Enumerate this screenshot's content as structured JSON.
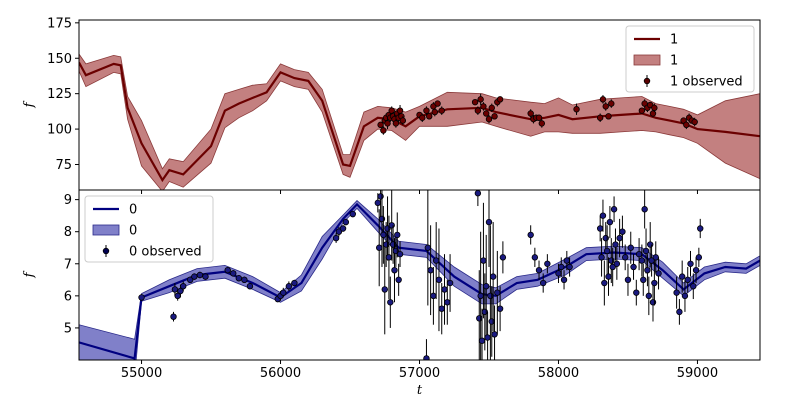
{
  "chart_data": [
    {
      "type": "line",
      "panel": "top",
      "ylabel": "f",
      "xlim": [
        54550,
        59450
      ],
      "ylim": [
        57,
        177
      ],
      "yticks": [
        75,
        100,
        125,
        150,
        175
      ],
      "legend": {
        "placement": "top-right",
        "entries": [
          "1",
          "1",
          "1 observed"
        ]
      },
      "colors": {
        "line": "#6b0000",
        "band": "#b86a6a",
        "band_edge": "#8b3a3a",
        "points": "#6b0000",
        "marker": "#5a0000"
      },
      "series": [
        {
          "name": "1",
          "x": [
            54550,
            54600,
            54800,
            54850,
            54900,
            55000,
            55150,
            55200,
            55300,
            55500,
            55600,
            55700,
            55800,
            55900,
            56000,
            56100,
            56200,
            56300,
            56450,
            56500,
            56600,
            56700,
            56800,
            56900,
            57000,
            57200,
            57450,
            57550,
            57800,
            57900,
            58000,
            58100,
            58300,
            58450,
            58600,
            58700,
            58800,
            58900,
            59000,
            59200,
            59450
          ],
          "y": [
            147,
            138,
            146,
            145,
            115,
            90,
            64,
            71,
            68,
            88,
            113,
            118,
            122,
            126,
            140,
            136,
            134,
            120,
            75,
            74,
            102,
            108,
            107,
            102,
            109,
            114,
            115,
            112,
            107,
            108,
            110,
            107,
            109,
            110,
            111,
            108,
            106,
            104,
            100,
            98,
            95
          ],
          "band_halfwidth": [
            6,
            8,
            6,
            6,
            8,
            16,
            8,
            8,
            9,
            12,
            12,
            10,
            9,
            6,
            6,
            6,
            6,
            8,
            7,
            8,
            10,
            8,
            8,
            10,
            7,
            12,
            10,
            10,
            12,
            10,
            12,
            10,
            12,
            12,
            12,
            10,
            10,
            10,
            10,
            22,
            30
          ]
        },
        {
          "name": "1 observed",
          "x": [
            56720,
            56740,
            56750,
            56760,
            56770,
            56780,
            56790,
            56800,
            56810,
            56820,
            56830,
            56840,
            56850,
            56860,
            56870,
            56880,
            57000,
            57020,
            57050,
            57070,
            57100,
            57110,
            57130,
            57160,
            57400,
            57420,
            57440,
            57460,
            57480,
            57500,
            57520,
            57540,
            57560,
            57580,
            57800,
            57820,
            57840,
            57860,
            57880,
            58130,
            58300,
            58320,
            58340,
            58360,
            58380,
            58600,
            58620,
            58640,
            58660,
            58680,
            58690,
            58900,
            58920,
            58940,
            58960,
            58980
          ],
          "y": [
            103,
            99,
            106,
            108,
            104,
            110,
            108,
            113,
            109,
            107,
            104,
            111,
            108,
            113,
            109,
            106,
            110,
            108,
            113,
            109,
            116,
            112,
            118,
            113,
            119,
            113,
            121,
            116,
            111,
            107,
            115,
            109,
            119,
            121,
            111,
            107,
            108,
            108,
            104,
            114,
            108,
            121,
            116,
            109,
            118,
            113,
            118,
            115,
            117,
            111,
            115,
            106,
            103,
            108,
            106,
            105
          ],
          "yerr": [
            2,
            3,
            2,
            3,
            4,
            2,
            3,
            3,
            3,
            4,
            3,
            2,
            3,
            4,
            2,
            3,
            2,
            3,
            3,
            2,
            3,
            3,
            2,
            3,
            2,
            3,
            4,
            3,
            2,
            3,
            3,
            2,
            3,
            2,
            3,
            3,
            2,
            2,
            3,
            4,
            3,
            3,
            3,
            2,
            3,
            2,
            3,
            3,
            2,
            2,
            3,
            2,
            3,
            3,
            2,
            3
          ]
        }
      ]
    },
    {
      "type": "line",
      "panel": "bottom",
      "ylabel": "f",
      "xlabel": "t",
      "xlim": [
        54550,
        59450
      ],
      "ylim": [
        4.0,
        9.3
      ],
      "yticks": [
        5,
        6,
        7,
        8,
        9
      ],
      "xticks": [
        55000,
        56000,
        57000,
        58000,
        59000
      ],
      "xtick_labels": [
        "55000",
        "56000",
        "57000",
        "58000",
        "59000"
      ],
      "legend": {
        "placement": "top-left",
        "entries": [
          "0",
          "0",
          "0 observed"
        ]
      },
      "colors": {
        "line": "#000080",
        "band": "#6a6abf",
        "band_edge": "#2a2a8a",
        "points": "#1a1a80",
        "marker": "#000050"
      },
      "series": [
        {
          "name": "0",
          "x": [
            54550,
            54950,
            55000,
            55200,
            55400,
            55600,
            55800,
            56000,
            56150,
            56300,
            56450,
            56550,
            56700,
            56850,
            57050,
            57250,
            57450,
            57550,
            57700,
            57850,
            58050,
            58200,
            58400,
            58600,
            58750,
            58900,
            59050,
            59200,
            59350,
            59450
          ],
          "y": [
            4.55,
            4.05,
            5.95,
            6.3,
            6.65,
            6.75,
            6.4,
            5.95,
            6.4,
            7.5,
            8.4,
            8.85,
            8.2,
            7.5,
            7.4,
            6.6,
            6.05,
            6.0,
            6.4,
            6.5,
            6.9,
            7.3,
            7.35,
            7.3,
            6.8,
            6.2,
            6.7,
            6.9,
            6.85,
            7.1
          ],
          "band_halfwidth": [
            0.55,
            0.6,
            0.12,
            0.2,
            0.2,
            0.2,
            0.2,
            0.15,
            0.25,
            0.35,
            0.12,
            0.12,
            0.2,
            0.2,
            0.2,
            0.3,
            0.3,
            0.25,
            0.2,
            0.2,
            0.25,
            0.2,
            0.2,
            0.2,
            0.25,
            0.2,
            0.2,
            0.15,
            0.15,
            0.15
          ]
        },
        {
          "name": "0 observed",
          "x": [
            55000,
            55230,
            55240,
            55260,
            55280,
            55300,
            55350,
            55380,
            55420,
            55460,
            55620,
            55660,
            55700,
            55740,
            55780,
            55980,
            56000,
            56020,
            56060,
            56100,
            56400,
            56420,
            56450,
            56470,
            56520,
            56700,
            56710,
            56720,
            56730,
            56740,
            56750,
            56760,
            56770,
            56780,
            56790,
            56800,
            56810,
            56820,
            56830,
            56840,
            56850,
            56860,
            57050,
            57060,
            57080,
            57100,
            57120,
            57140,
            57160,
            57180,
            57200,
            57220,
            57420,
            57430,
            57440,
            57450,
            57460,
            57470,
            57480,
            57490,
            57500,
            57510,
            57520,
            57530,
            57540,
            57560,
            57580,
            57600,
            57800,
            57830,
            57860,
            57890,
            57920,
            58000,
            58020,
            58040,
            58060,
            58080,
            58300,
            58310,
            58320,
            58330,
            58340,
            58350,
            58360,
            58370,
            58380,
            58390,
            58400,
            58410,
            58420,
            58440,
            58460,
            58480,
            58500,
            58520,
            58540,
            58560,
            58580,
            58600,
            58610,
            58620,
            58630,
            58640,
            58650,
            58660,
            58670,
            58680,
            58690,
            58700,
            58720,
            58850,
            58870,
            58890,
            58910,
            58930,
            58950,
            58970,
            58990,
            59010,
            59020
          ],
          "y": [
            5.95,
            5.35,
            6.2,
            6.0,
            6.15,
            6.3,
            6.5,
            6.6,
            6.65,
            6.6,
            6.8,
            6.7,
            6.55,
            6.5,
            6.3,
            5.9,
            6.0,
            6.1,
            6.3,
            6.4,
            7.8,
            8.0,
            8.1,
            8.3,
            8.55,
            8.9,
            7.5,
            9.1,
            8.4,
            7.9,
            6.2,
            7.6,
            8.1,
            7.2,
            5.8,
            8.2,
            7.6,
            6.8,
            7.4,
            7.9,
            6.5,
            7.3,
            4.05,
            7.5,
            6.8,
            6.0,
            7.1,
            6.5,
            5.6,
            6.2,
            5.8,
            6.4,
            9.2,
            5.3,
            6.0,
            4.6,
            7.1,
            5.5,
            6.3,
            4.7,
            8.3,
            6.0,
            5.2,
            6.6,
            4.8,
            6.1,
            5.6,
            7.2,
            7.9,
            7.2,
            6.8,
            6.4,
            7.0,
            6.7,
            6.9,
            6.5,
            7.1,
            6.9,
            8.1,
            7.2,
            8.5,
            6.4,
            7.8,
            7.4,
            6.6,
            8.3,
            7.1,
            6.9,
            8.7,
            7.6,
            7.0,
            7.8,
            8.0,
            7.2,
            6.5,
            7.5,
            6.9,
            6.1,
            7.3,
            7.1,
            6.5,
            8.7,
            7.4,
            6.8,
            6.0,
            7.6,
            7.1,
            5.8,
            6.4,
            7.2,
            6.7,
            6.1,
            5.5,
            6.6,
            6.0,
            6.5,
            7.0,
            6.3,
            6.8,
            7.2,
            8.1
          ],
          "yerr": [
            0.1,
            0.15,
            0.2,
            0.15,
            0.2,
            0.15,
            0.1,
            0.1,
            0.1,
            0.1,
            0.1,
            0.1,
            0.1,
            0.1,
            0.1,
            0.1,
            0.15,
            0.15,
            0.15,
            0.1,
            0.15,
            0.15,
            0.1,
            0.1,
            0.1,
            0.3,
            1.2,
            0.8,
            1.5,
            0.9,
            1.4,
            0.7,
            1.0,
            1.3,
            0.8,
            1.1,
            0.6,
            1.0,
            0.5,
            0.7,
            0.5,
            0.4,
            0.6,
            1.8,
            1.4,
            0.9,
            1.2,
            1.6,
            0.8,
            1.1,
            0.7,
            0.9,
            0.4,
            1.5,
            2.0,
            1.0,
            1.8,
            1.2,
            1.6,
            0.8,
            1.4,
            2.2,
            1.1,
            1.7,
            0.9,
            1.3,
            0.7,
            0.5,
            0.3,
            0.3,
            0.3,
            0.3,
            0.3,
            0.3,
            0.3,
            0.3,
            0.3,
            0.3,
            0.4,
            0.6,
            0.5,
            0.7,
            0.5,
            0.8,
            0.6,
            0.5,
            0.7,
            0.6,
            0.4,
            0.5,
            0.5,
            0.6,
            0.5,
            0.4,
            0.5,
            0.5,
            0.4,
            0.4,
            0.5,
            0.5,
            0.5,
            0.6,
            0.7,
            0.5,
            0.6,
            0.7,
            0.5,
            0.6,
            0.7,
            0.5,
            0.5,
            0.5,
            0.4,
            0.5,
            0.5,
            0.4,
            0.4,
            0.4,
            0.4,
            0.3,
            0.3
          ]
        }
      ]
    }
  ]
}
